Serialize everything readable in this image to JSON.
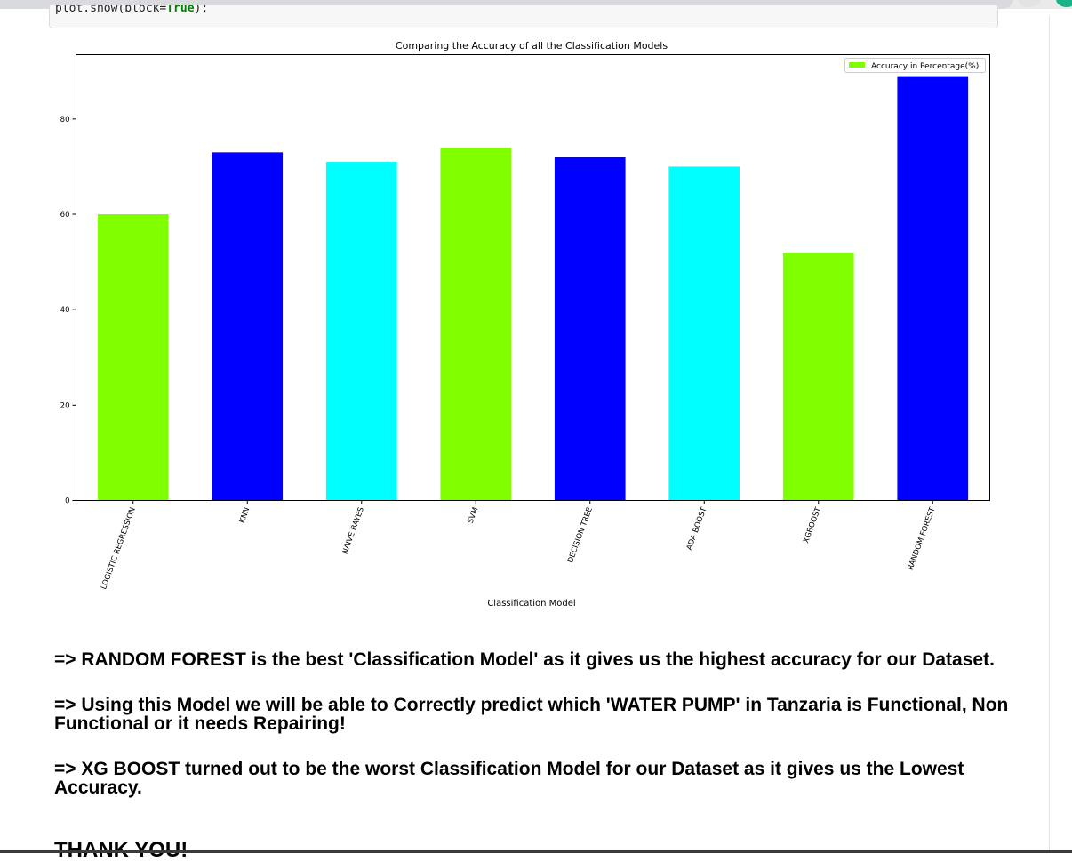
{
  "code": {
    "prefix": "plot.show(block=",
    "keyword": "True",
    "suffix": ");"
  },
  "chart_data": {
    "type": "bar",
    "title": "Comparing the Accuracy of all the Classification Models",
    "xlabel": "Classification Model",
    "ylabel": "",
    "categories": [
      "LOGISTIC REGRESSION",
      "KNN",
      "NAIVE BAYES",
      "SVM",
      "DECISION TREE",
      "ADA BOOST",
      "XGBOOST",
      "RANDOM FOREST"
    ],
    "series": [
      {
        "name": "Accuracy in Percentage(%)",
        "values": [
          60,
          73,
          71,
          74,
          72,
          70,
          52,
          89
        ]
      }
    ],
    "bar_colors": [
      "#7fff00",
      "#0000ff",
      "#00ffff",
      "#7fff00",
      "#0000ff",
      "#00ffff",
      "#7fff00",
      "#0000ff"
    ],
    "legend_color": "#7fff00",
    "yticks": [
      0,
      20,
      40,
      60,
      80
    ],
    "ylim": [
      0,
      93.5
    ],
    "grid": false,
    "legend_position": "top-right"
  },
  "notes": [
    "=> RANDOM FOREST is the best 'Classification Model' as it gives us the highest accuracy for our Dataset.",
    "=> Using this Model we will be able to Correctly predict which 'WATER PUMP' in Tanzaria is Functional, Non Functional or it needs Repairing!",
    "=> XG BOOST turned out to be the worst Classification Model for our Dataset as it gives us the Lowest Accuracy."
  ],
  "thanks": "THANK YOU!"
}
